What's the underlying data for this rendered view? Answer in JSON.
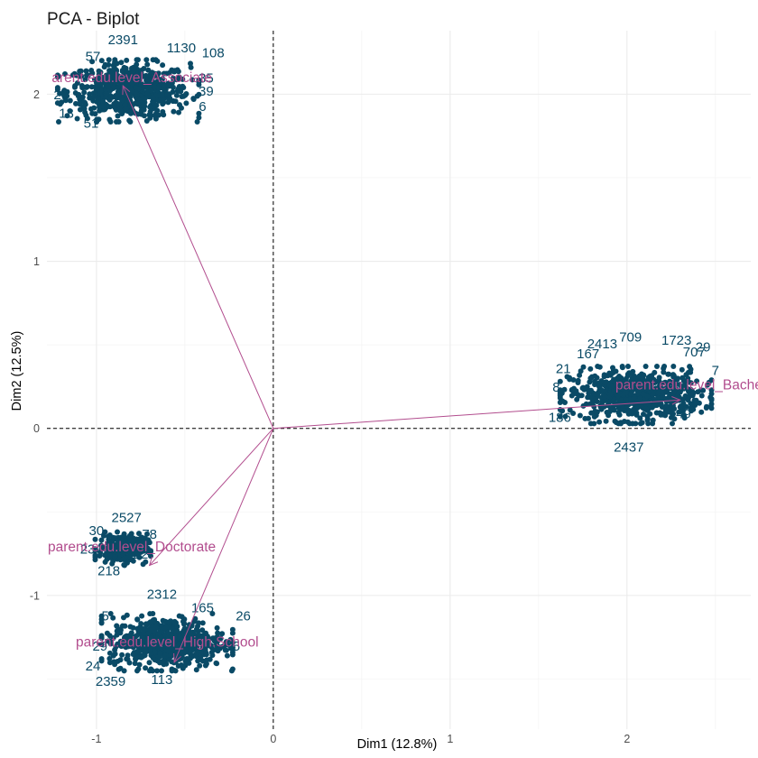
{
  "chart_data": {
    "type": "scatter",
    "title": "PCA - Biplot",
    "xlabel": "Dim1 (12.8%)",
    "ylabel": "Dim2 (12.5%)",
    "xlim": [
      -1.28,
      2.7
    ],
    "ylim": [
      -1.8,
      2.38
    ],
    "x_ticks": [
      -1,
      0,
      1,
      2
    ],
    "y_ticks": [
      -1,
      0,
      1,
      2
    ],
    "grid": true,
    "reference_lines": {
      "x": 0,
      "y": 0,
      "style": "dashed"
    },
    "point_color": "#0a4a66",
    "arrow_color": "#b24d8e",
    "clusters": [
      {
        "group": "Associate",
        "center": [
          -0.82,
          2.02
        ],
        "spread": [
          0.28,
          0.13
        ],
        "n": 650,
        "labels": [
          {
            "text": "2391",
            "x": -0.85,
            "y": 2.3
          },
          {
            "text": "108",
            "x": -0.34,
            "y": 2.22
          },
          {
            "text": "1130",
            "x": -0.52,
            "y": 2.25
          },
          {
            "text": "57",
            "x": -1.02,
            "y": 2.2
          },
          {
            "text": "35",
            "x": -0.38,
            "y": 2.07
          },
          {
            "text": "39",
            "x": -0.38,
            "y": 1.99
          },
          {
            "text": "26",
            "x": -1.2,
            "y": 1.97
          },
          {
            "text": "13",
            "x": -1.17,
            "y": 1.86
          },
          {
            "text": "51",
            "x": -1.03,
            "y": 1.8
          },
          {
            "text": "6",
            "x": -0.4,
            "y": 1.9
          }
        ]
      },
      {
        "group": "Bachelor",
        "center": [
          2.05,
          0.2
        ],
        "spread": [
          0.3,
          0.12
        ],
        "n": 700,
        "labels": [
          {
            "text": "709",
            "x": 2.02,
            "y": 0.52
          },
          {
            "text": "1723",
            "x": 2.28,
            "y": 0.5
          },
          {
            "text": "2413",
            "x": 1.86,
            "y": 0.48
          },
          {
            "text": "707",
            "x": 2.38,
            "y": 0.43
          },
          {
            "text": "167",
            "x": 1.78,
            "y": 0.42
          },
          {
            "text": "29",
            "x": 2.43,
            "y": 0.46
          },
          {
            "text": "7",
            "x": 2.5,
            "y": 0.32
          },
          {
            "text": "21",
            "x": 1.64,
            "y": 0.33
          },
          {
            "text": "8",
            "x": 1.6,
            "y": 0.22
          },
          {
            "text": "186",
            "x": 1.62,
            "y": 0.04
          },
          {
            "text": "49",
            "x": 2.32,
            "y": 0.06
          },
          {
            "text": "2437",
            "x": 2.01,
            "y": -0.14
          }
        ]
      },
      {
        "group": "Doctorate",
        "center": [
          -0.85,
          -0.72
        ],
        "spread": [
          0.11,
          0.07
        ],
        "n": 220,
        "labels": [
          {
            "text": "2527",
            "x": -0.83,
            "y": -0.56
          },
          {
            "text": "78",
            "x": -0.7,
            "y": -0.66
          },
          {
            "text": "30",
            "x": -1.0,
            "y": -0.64
          },
          {
            "text": "23",
            "x": -1.05,
            "y": -0.75
          },
          {
            "text": "22",
            "x": -0.75,
            "y": -0.78
          },
          {
            "text": "218",
            "x": -0.93,
            "y": -0.88
          }
        ]
      },
      {
        "group": "High.School",
        "center": [
          -0.6,
          -1.28
        ],
        "spread": [
          0.26,
          0.12
        ],
        "n": 650,
        "labels": [
          {
            "text": "2312",
            "x": -0.63,
            "y": -1.02
          },
          {
            "text": "165",
            "x": -0.4,
            "y": -1.1
          },
          {
            "text": "26",
            "x": -0.17,
            "y": -1.15
          },
          {
            "text": "24",
            "x": -1.02,
            "y": -1.45
          },
          {
            "text": "2359",
            "x": -0.92,
            "y": -1.54
          },
          {
            "text": "113",
            "x": -0.63,
            "y": -1.53
          },
          {
            "text": "5",
            "x": -0.95,
            "y": -1.15
          },
          {
            "text": "29",
            "x": -0.98,
            "y": -1.33
          },
          {
            "text": "15",
            "x": -0.23,
            "y": -1.33
          }
        ]
      }
    ],
    "variables": [
      {
        "name": "parent.edu.level_Associate",
        "display": "arent.edu.level_Associate",
        "x": -0.85,
        "y": 2.05,
        "label_x": -0.8,
        "label_y": 2.1
      },
      {
        "name": "parent.edu.level_Bachelor",
        "display": "parent.edu.level_Bache",
        "x": 2.3,
        "y": 0.17,
        "label_x": 2.35,
        "label_y": 0.26
      },
      {
        "name": "parent.edu.level_Doctorate",
        "display": "parent.edu.level_Doctorate",
        "x": -0.7,
        "y": -0.82,
        "label_x": -0.8,
        "label_y": -0.71
      },
      {
        "name": "parent.edu.level_High.School",
        "display": "parent.edu.level_High.School",
        "x": -0.56,
        "y": -1.4,
        "label_x": -0.6,
        "label_y": -1.28
      }
    ]
  }
}
